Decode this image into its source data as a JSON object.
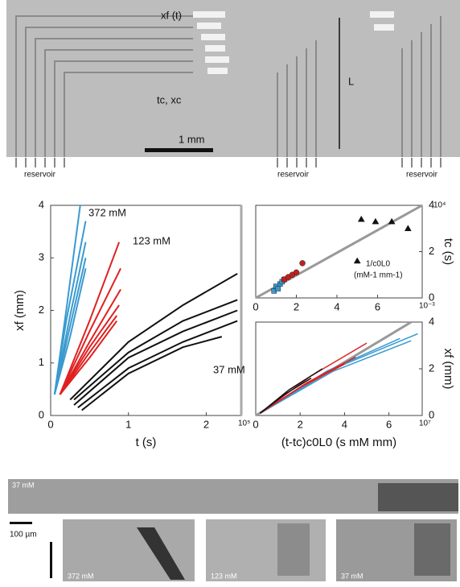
{
  "micrograph": {
    "xf_label": "xf (t)",
    "tc_label": "tc, xc",
    "l_label": "L",
    "scale_label": "1 mm",
    "reservoirs": [
      "reservoir",
      "reservoir",
      "reservoir"
    ]
  },
  "chart_data": [
    {
      "type": "line",
      "ylabel": "xf (mm)",
      "xlabel": "t (s)",
      "x_exponent": "10⁵",
      "xlim": [
        0,
        2.45
      ],
      "ylim": [
        0,
        4
      ],
      "xticks": [
        0,
        1,
        2
      ],
      "yticks": [
        0,
        1,
        2,
        3,
        4
      ],
      "series": [
        {
          "name": "372 mM",
          "color": "#3a9ad0",
          "lines": [
            {
              "x": [
                0.05,
                0.2,
                0.38
              ],
              "y": [
                0.4,
                2.0,
                4.0
              ]
            },
            {
              "x": [
                0.05,
                0.2,
                0.45
              ],
              "y": [
                0.4,
                1.8,
                3.7
              ]
            },
            {
              "x": [
                0.05,
                0.25,
                0.45
              ],
              "y": [
                0.4,
                1.9,
                3.3
              ]
            },
            {
              "x": [
                0.05,
                0.25,
                0.45
              ],
              "y": [
                0.4,
                1.7,
                3.0
              ]
            },
            {
              "x": [
                0.05,
                0.25,
                0.45
              ],
              "y": [
                0.4,
                1.5,
                2.8
              ]
            }
          ]
        },
        {
          "name": "123 mM",
          "color": "#e02020",
          "lines": [
            {
              "x": [
                0.12,
                0.5,
                0.88
              ],
              "y": [
                0.4,
                1.8,
                3.3
              ]
            },
            {
              "x": [
                0.12,
                0.5,
                0.9
              ],
              "y": [
                0.4,
                1.6,
                2.8
              ]
            },
            {
              "x": [
                0.12,
                0.5,
                0.9
              ],
              "y": [
                0.4,
                1.4,
                2.4
              ]
            },
            {
              "x": [
                0.12,
                0.5,
                0.88
              ],
              "y": [
                0.4,
                1.3,
                2.1
              ]
            },
            {
              "x": [
                0.12,
                0.5,
                0.85
              ],
              "y": [
                0.4,
                1.2,
                1.9
              ]
            },
            {
              "x": [
                0.12,
                0.5,
                0.85
              ],
              "y": [
                0.4,
                1.1,
                1.8
              ]
            }
          ]
        },
        {
          "name": "37 mM",
          "color": "#111111",
          "lines": [
            {
              "x": [
                0.25,
                1.0,
                1.7,
                2.4
              ],
              "y": [
                0.3,
                1.4,
                2.1,
                2.7
              ]
            },
            {
              "x": [
                0.3,
                1.0,
                1.7,
                2.4
              ],
              "y": [
                0.3,
                1.2,
                1.8,
                2.2
              ]
            },
            {
              "x": [
                0.3,
                1.0,
                1.7,
                2.4
              ],
              "y": [
                0.2,
                1.1,
                1.6,
                2.0
              ]
            },
            {
              "x": [
                0.35,
                1.0,
                1.7,
                2.4
              ],
              "y": [
                0.15,
                0.9,
                1.4,
                1.8
              ]
            },
            {
              "x": [
                0.4,
                1.0,
                1.7,
                2.2
              ],
              "y": [
                0.1,
                0.8,
                1.3,
                1.5
              ]
            }
          ]
        }
      ]
    },
    {
      "type": "scatter",
      "ylabel": "tc (s)",
      "y_exponent": "10⁴",
      "x_exponent": "10⁻³",
      "annotation": "1/c0L0",
      "annotation_units": "(mM-1 mm-1)",
      "xlim": [
        0,
        8.2
      ],
      "ylim": [
        0,
        4
      ],
      "xticks": [
        0,
        2,
        4,
        6
      ],
      "yticks": [
        0,
        2,
        4
      ],
      "fit_line": {
        "x": [
          0,
          8.2
        ],
        "y": [
          0,
          4
        ]
      },
      "series": [
        {
          "color": "#3a9ad0",
          "marker": "square",
          "x": [
            0.9,
            1.0,
            1.1,
            1.2,
            1.3,
            1.4
          ],
          "values": [
            0.3,
            0.5,
            0.4,
            0.6,
            0.7,
            0.8
          ]
        },
        {
          "color": "#c02020",
          "marker": "circle",
          "x": [
            1.4,
            1.6,
            1.8,
            2.0,
            2.3
          ],
          "values": [
            0.8,
            0.9,
            1.0,
            1.1,
            1.5
          ]
        },
        {
          "color": "#111111",
          "marker": "triangle",
          "x": [
            5.0,
            5.2,
            5.9,
            6.7,
            7.5
          ],
          "values": [
            1.6,
            3.4,
            3.3,
            3.3,
            3.0
          ]
        }
      ]
    },
    {
      "type": "line",
      "ylabel": "xf (mm)",
      "xlabel": "(t-tc)c0L0 (s mM mm)",
      "x_exponent": "10⁷",
      "xlim": [
        0,
        7.5
      ],
      "ylim": [
        0,
        4
      ],
      "xticks": [
        0,
        2,
        4,
        6
      ],
      "yticks": [
        0,
        2,
        4
      ],
      "fit_line": {
        "x": [
          0,
          7.0
        ],
        "y": [
          0,
          4
        ]
      },
      "series": [
        {
          "color": "#3a9ad0",
          "lines": [
            {
              "x": [
                0.2,
                3.5,
                7.3
              ],
              "y": [
                0.1,
                2.0,
                3.5
              ]
            },
            {
              "x": [
                0.2,
                3.5,
                7.0
              ],
              "y": [
                0.1,
                1.9,
                3.2
              ]
            },
            {
              "x": [
                0.2,
                3.2,
                6.5
              ],
              "y": [
                0.1,
                1.9,
                3.3
              ]
            }
          ]
        },
        {
          "color": "#e02020",
          "lines": [
            {
              "x": [
                0.2,
                2.5,
                5.0
              ],
              "y": [
                0.1,
                1.7,
                3.1
              ]
            },
            {
              "x": [
                0.2,
                2.3,
                4.5
              ],
              "y": [
                0.1,
                1.4,
                2.5
              ]
            },
            {
              "x": [
                0.2,
                2.0,
                4.0
              ],
              "y": [
                0.1,
                1.2,
                2.2
              ]
            }
          ]
        },
        {
          "color": "#111111",
          "lines": [
            {
              "x": [
                0.2,
                1.5,
                3.0
              ],
              "y": [
                0.1,
                1.1,
                2.0
              ]
            },
            {
              "x": [
                0.2,
                1.3,
                2.5
              ],
              "y": [
                0.1,
                0.9,
                1.6
              ]
            }
          ]
        }
      ]
    }
  ],
  "bottom_images": {
    "strip_label": "37 mM",
    "scale_label": "100 µm",
    "panels": [
      "372 mM",
      "123 mM",
      "37 mM"
    ]
  }
}
